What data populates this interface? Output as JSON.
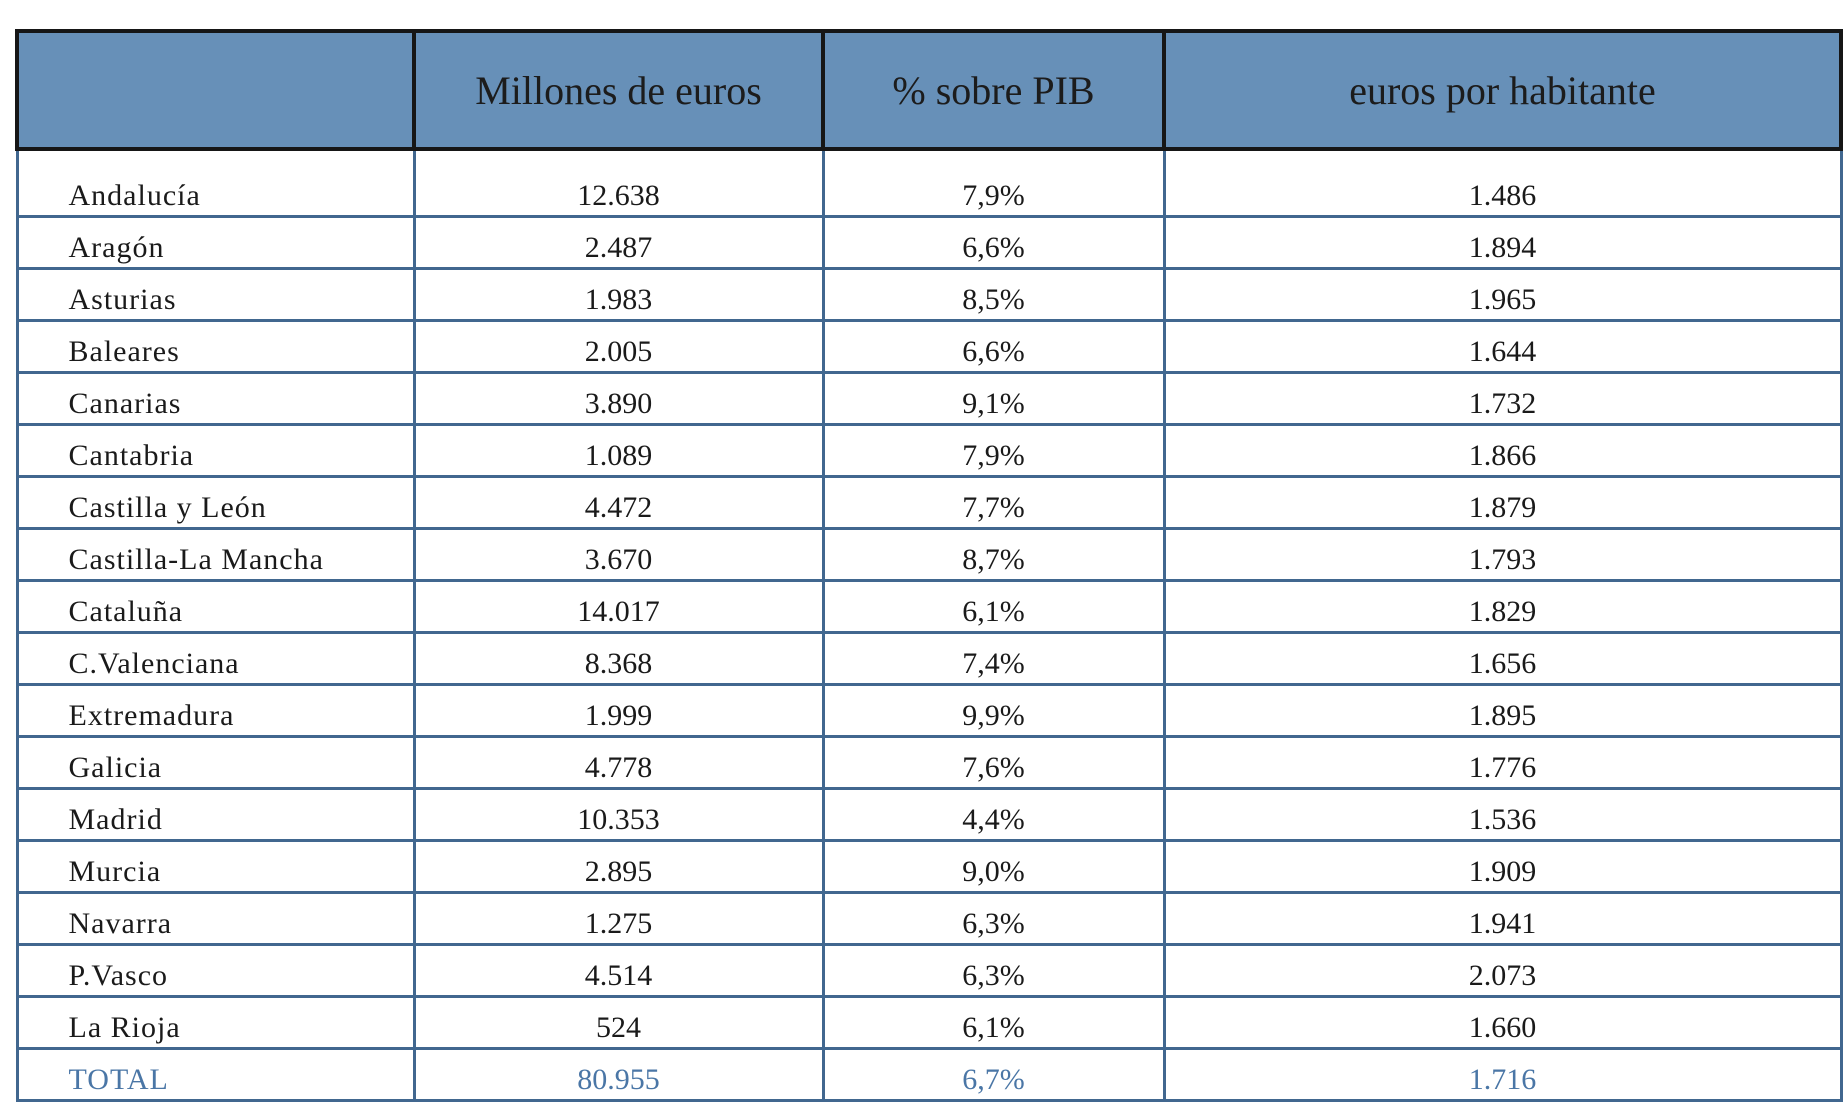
{
  "table": {
    "headers": [
      "",
      "Millones de euros",
      "% sobre PIB",
      "euros por habitante"
    ],
    "rows": [
      {
        "region": "Andalucía",
        "millones": "12.638",
        "pib": "7,9%",
        "habitante": "1.486"
      },
      {
        "region": "Aragón",
        "millones": "2.487",
        "pib": "6,6%",
        "habitante": "1.894"
      },
      {
        "region": "Asturias",
        "millones": "1.983",
        "pib": "8,5%",
        "habitante": "1.965"
      },
      {
        "region": "Baleares",
        "millones": "2.005",
        "pib": "6,6%",
        "habitante": "1.644"
      },
      {
        "region": "Canarias",
        "millones": "3.890",
        "pib": "9,1%",
        "habitante": "1.732"
      },
      {
        "region": "Cantabria",
        "millones": "1.089",
        "pib": "7,9%",
        "habitante": "1.866"
      },
      {
        "region": "Castilla y León",
        "millones": "4.472",
        "pib": "7,7%",
        "habitante": "1.879"
      },
      {
        "region": "Castilla-La Mancha",
        "millones": "3.670",
        "pib": "8,7%",
        "habitante": "1.793"
      },
      {
        "region": "Cataluña",
        "millones": "14.017",
        "pib": "6,1%",
        "habitante": "1.829"
      },
      {
        "region": "C.Valenciana",
        "millones": "8.368",
        "pib": "7,4%",
        "habitante": "1.656"
      },
      {
        "region": "Extremadura",
        "millones": "1.999",
        "pib": "9,9%",
        "habitante": "1.895"
      },
      {
        "region": "Galicia",
        "millones": "4.778",
        "pib": "7,6%",
        "habitante": "1.776"
      },
      {
        "region": "Madrid",
        "millones": "10.353",
        "pib": "4,4%",
        "habitante": "1.536"
      },
      {
        "region": "Murcia",
        "millones": "2.895",
        "pib": "9,0%",
        "habitante": "1.909"
      },
      {
        "region": "Navarra",
        "millones": "1.275",
        "pib": "6,3%",
        "habitante": "1.941"
      },
      {
        "region": "P.Vasco",
        "millones": "4.514",
        "pib": "6,3%",
        "habitante": "2.073"
      },
      {
        "region": "La Rioja",
        "millones": "524",
        "pib": "6,1%",
        "habitante": "1.660"
      }
    ],
    "total": {
      "region": "TOTAL",
      "millones": "80.955",
      "pib": "6,7%",
      "habitante": "1.716"
    }
  },
  "colors": {
    "header_bg": "#6790b8",
    "grid_line": "#41678f",
    "outer_border": "#161616",
    "total_text": "#4a76a6"
  }
}
